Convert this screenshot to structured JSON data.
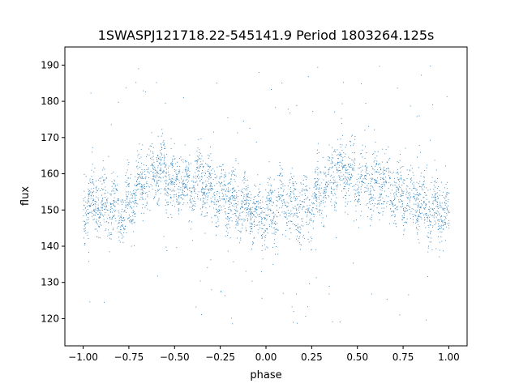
{
  "chart_data": {
    "type": "scatter",
    "title": "1SWASPJ121718.22-545141.9 Period 1803264.125s",
    "xlabel": "phase",
    "ylabel": "flux",
    "xlim": [
      -1.1,
      1.1
    ],
    "ylim": [
      112.5,
      195
    ],
    "xticks": [
      "−1.00",
      "−0.75",
      "−0.50",
      "−0.25",
      "0.00",
      "0.25",
      "0.50",
      "0.75",
      "1.00"
    ],
    "yticks": [
      "120",
      "130",
      "140",
      "150",
      "160",
      "170",
      "180",
      "190"
    ],
    "grid": false,
    "legend": "none",
    "point_color": "#1f77b4",
    "series": [
      {
        "x": [
          -1.0,
          -0.96,
          -0.93,
          -0.9,
          -0.87,
          -0.84,
          -0.8,
          -0.77,
          -0.74,
          -0.7,
          -0.67,
          -0.64,
          -0.6,
          -0.57,
          -0.54,
          -0.5,
          -0.47,
          -0.44,
          -0.4,
          -0.37,
          -0.34,
          -0.3,
          -0.27,
          -0.24,
          -0.2,
          -0.17,
          -0.14,
          -0.1,
          -0.07,
          -0.04,
          0.0,
          0.04,
          0.07,
          0.1,
          0.14,
          0.17,
          0.2,
          0.24,
          0.27,
          0.3,
          0.34,
          0.37,
          0.4,
          0.44,
          0.47,
          0.5,
          0.54,
          0.57,
          0.6,
          0.64,
          0.67,
          0.7,
          0.74,
          0.77,
          0.8,
          0.84,
          0.87,
          0.9,
          0.94,
          0.97,
          1.0
        ],
        "y": [
          150,
          152,
          153,
          151,
          152,
          151,
          149,
          150,
          153,
          156,
          158,
          160,
          162,
          161,
          160,
          158,
          159,
          157,
          156,
          158,
          157,
          155,
          155,
          154,
          153,
          152,
          151,
          150,
          150,
          149,
          148,
          151,
          152,
          153,
          152,
          151,
          150,
          151,
          153,
          156,
          158,
          160,
          162,
          161,
          160,
          158,
          159,
          157,
          156,
          158,
          157,
          155,
          155,
          154,
          153,
          152,
          151,
          150,
          150,
          149,
          148
        ]
      }
    ]
  }
}
